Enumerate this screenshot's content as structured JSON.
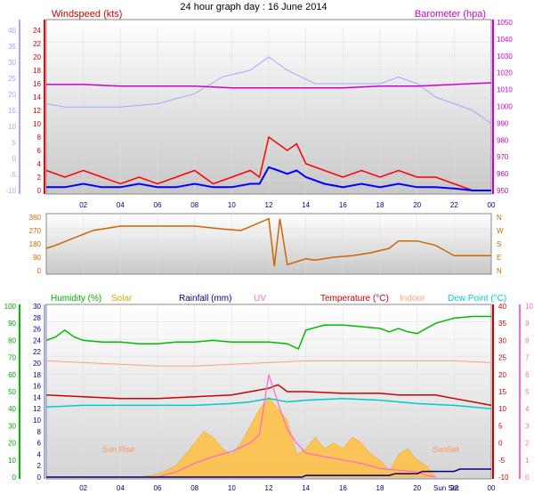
{
  "title": "24 hour graph day : 16 June 2014",
  "colors": {
    "windspeed": "#ff0000",
    "gust": "#0000ff",
    "barometer": "#cc00cc",
    "direction_band": "#a0a8ff",
    "wind_dir": "#cc6600",
    "humidity": "#00bb00",
    "solar": "#ffc040",
    "rainfall": "#000080",
    "uv": "#ff66cc",
    "temperature": "#cc0000",
    "indoor": "#ffa080",
    "dewpoint": "#00cccc"
  },
  "x_ticks": [
    "02",
    "04",
    "06",
    "08",
    "10",
    "12",
    "14",
    "16",
    "18",
    "20",
    "22",
    "00"
  ],
  "annotations": {
    "sunrise": "Sun Rise",
    "sunset": "SunSet",
    "sunset2": "Sun Set"
  },
  "chart_data": [
    {
      "type": "line",
      "name": "wind-barometer",
      "left_label": "Windspeed (kts)",
      "right_label": "Barometer (hpa)",
      "left_ticks_red": [
        "24",
        "22",
        "20",
        "18",
        "16",
        "14",
        "12",
        "10",
        "8",
        "6",
        "4",
        "2",
        "0"
      ],
      "left_ticks_blue": [
        "40",
        "35",
        "30",
        "25",
        "20",
        "15",
        "10",
        "5",
        "0",
        "-5",
        "-10"
      ],
      "right_ticks": [
        "1050",
        "1040",
        "1030",
        "1020",
        "1010",
        "1000",
        "990",
        "980",
        "970",
        "960",
        "950"
      ],
      "ylim_wind": [
        0,
        24
      ],
      "ylim_baro": [
        950,
        1050
      ],
      "series": {
        "barometer": {
          "x": [
            0,
            2,
            4,
            6,
            8,
            10,
            12,
            14,
            16,
            18,
            20,
            22,
            24
          ],
          "y": [
            1013,
            1013,
            1012,
            1012,
            1012,
            1011,
            1011,
            1011,
            1011,
            1012,
            1012,
            1013,
            1014
          ]
        },
        "band": {
          "x": [
            0,
            1,
            4,
            6,
            8,
            9.5,
            11,
            12,
            13,
            14.5,
            16,
            18,
            19,
            20,
            21,
            22,
            23,
            24
          ],
          "y": [
            13,
            12.5,
            12.5,
            13,
            14.5,
            17,
            18,
            20,
            18,
            16,
            16,
            16,
            17,
            16,
            14,
            13,
            12,
            10
          ]
        },
        "windspeed": {
          "x": [
            0,
            1,
            2,
            3,
            4,
            5,
            6,
            7,
            8,
            9,
            10,
            11,
            11.5,
            12,
            12.5,
            13,
            13.5,
            14,
            15,
            16,
            17,
            18,
            19,
            20,
            21,
            22,
            23,
            24
          ],
          "y": [
            3,
            2,
            3,
            2,
            1,
            2,
            1,
            2,
            3,
            1,
            2,
            3,
            2,
            8,
            7,
            6,
            7,
            4,
            3,
            2,
            3,
            2,
            3,
            2,
            2,
            1,
            0,
            0
          ]
        },
        "gust": {
          "x": [
            0,
            1,
            2,
            3,
            4,
            5,
            6,
            7,
            8,
            9,
            10,
            11,
            11.5,
            12,
            12.5,
            13,
            13.5,
            14,
            15,
            16,
            17,
            18,
            19,
            20,
            21,
            22,
            23,
            24
          ],
          "y": [
            0.5,
            0.5,
            1,
            0.5,
            0.5,
            1,
            0.5,
            0.5,
            1,
            0.5,
            0.5,
            1,
            1,
            3.5,
            3,
            2.5,
            3,
            2,
            1,
            0.5,
            1,
            0.5,
            1,
            0.5,
            0.5,
            0.3,
            0,
            0
          ]
        }
      }
    },
    {
      "type": "line",
      "name": "wind-direction",
      "left_ticks": [
        "360",
        "270",
        "180",
        "90",
        "0"
      ],
      "right_ticks": [
        "N",
        "W",
        "S",
        "E",
        "N"
      ],
      "ylim": [
        0,
        360
      ],
      "series": {
        "direction": {
          "x": [
            0,
            0.5,
            1.5,
            2.5,
            3.5,
            4,
            6,
            8,
            9.5,
            10.5,
            12,
            12.3,
            12.6,
            13,
            13.5,
            14,
            14.5,
            15.5,
            16.5,
            17.5,
            18.5,
            19,
            20,
            21,
            22,
            23,
            24
          ],
          "y": [
            150,
            170,
            220,
            270,
            290,
            300,
            300,
            300,
            280,
            270,
            350,
            30,
            350,
            40,
            60,
            80,
            70,
            90,
            100,
            120,
            150,
            200,
            200,
            170,
            100,
            100,
            100
          ]
        }
      }
    },
    {
      "type": "line",
      "name": "humidity-temperature",
      "labels": [
        "Humidity (%)",
        "Solar",
        "Rainfall (mm)",
        "UV",
        "Temperature (°C)",
        "Indoor",
        "Dew Point (°C)"
      ],
      "left_ticks_humidity": [
        "100",
        "90",
        "80",
        "70",
        "60",
        "50",
        "40",
        "30",
        "20",
        "10",
        "0"
      ],
      "left_ticks_solar": [
        "30",
        "28",
        "26",
        "24",
        "22",
        "20",
        "18",
        "16",
        "14",
        "12",
        "10",
        "8",
        "6",
        "4",
        "2",
        "0"
      ],
      "right_ticks_temp": [
        "40",
        "35",
        "30",
        "25",
        "20",
        "15",
        "10",
        "5",
        "0",
        "-5",
        "-10"
      ],
      "right_ticks_uv": [
        "10",
        "9",
        "8",
        "7",
        "6",
        "5",
        "4",
        "3",
        "2",
        "1",
        "0"
      ],
      "ylim_humidity": [
        0,
        100
      ],
      "ylim_temp": [
        -10,
        40
      ],
      "series": {
        "humidity": {
          "x": [
            0,
            0.5,
            1,
            1.5,
            2,
            3,
            4,
            5,
            6,
            7,
            8,
            9,
            10,
            11,
            12,
            13,
            13.6,
            14,
            15,
            16,
            17,
            18,
            18.5,
            19,
            19.5,
            20,
            21,
            22,
            23,
            24
          ],
          "y": [
            80,
            82,
            86,
            82,
            80,
            79,
            79,
            78,
            78,
            79,
            79,
            80,
            79,
            79,
            79,
            78,
            75,
            86,
            89,
            89,
            88,
            87,
            85,
            87,
            85,
            84,
            90,
            93,
            94,
            94
          ]
        },
        "indoor": {
          "x": [
            0,
            2,
            4,
            6,
            8,
            10,
            12,
            14,
            16,
            18,
            20,
            22,
            24
          ],
          "y": [
            24,
            23.5,
            23,
            22.5,
            22.5,
            23,
            23.5,
            24,
            24,
            24,
            24,
            24,
            23.5
          ]
        },
        "temperature": {
          "x": [
            0,
            2,
            4,
            6,
            8,
            10,
            11,
            12,
            12.5,
            13,
            14,
            16,
            18,
            19,
            20,
            21,
            22,
            23,
            24
          ],
          "y": [
            14,
            13.5,
            13,
            13,
            13.5,
            14,
            15,
            16,
            17,
            15,
            15,
            14.5,
            14.5,
            14,
            14,
            14,
            13,
            12,
            11
          ]
        },
        "dewpoint": {
          "x": [
            0,
            2,
            4,
            6,
            8,
            10,
            11,
            12,
            13,
            14,
            16,
            18,
            20,
            22,
            24
          ],
          "y": [
            10.5,
            11,
            11,
            11,
            11,
            11.5,
            12,
            13,
            12,
            12.5,
            13,
            12.5,
            11.5,
            11,
            10
          ]
        },
        "uv": {
          "x": [
            5.5,
            6,
            7,
            8,
            9,
            10,
            11,
            11.5,
            12,
            12.3,
            12.6,
            13,
            13.5,
            14,
            15,
            16,
            17,
            18,
            19,
            20,
            20.5,
            21
          ],
          "y": [
            0,
            0,
            0.3,
            0.8,
            1.2,
            1.5,
            2,
            2.5,
            6,
            5,
            4,
            2.8,
            2,
            1.4,
            1.2,
            1,
            0.8,
            0.5,
            0.4,
            0.3,
            0.1,
            0
          ]
        },
        "solar": {
          "x": [
            5,
            6,
            7,
            8,
            8.5,
            9,
            9.5,
            10,
            10.5,
            11,
            11.5,
            12,
            12.5,
            13,
            13.5,
            14,
            14.5,
            15,
            15.5,
            16,
            16.5,
            17,
            17.5,
            18,
            18.5,
            19,
            19.5,
            20,
            20.5,
            21
          ],
          "y": [
            0,
            0.5,
            2,
            6,
            8,
            7,
            5,
            4,
            6,
            9,
            12,
            14,
            12,
            10,
            4,
            5,
            7,
            5,
            6,
            5,
            7,
            6,
            4,
            3,
            1,
            4,
            5,
            3,
            2,
            0
          ]
        },
        "rainfall": {
          "x": [
            0,
            13.8,
            14,
            18.5,
            18.8,
            20,
            20.3,
            22,
            22.3,
            24
          ],
          "y": [
            0,
            0,
            0.3,
            0.3,
            0.6,
            0.6,
            1,
            1,
            1.4,
            1.4
          ]
        }
      }
    }
  ]
}
